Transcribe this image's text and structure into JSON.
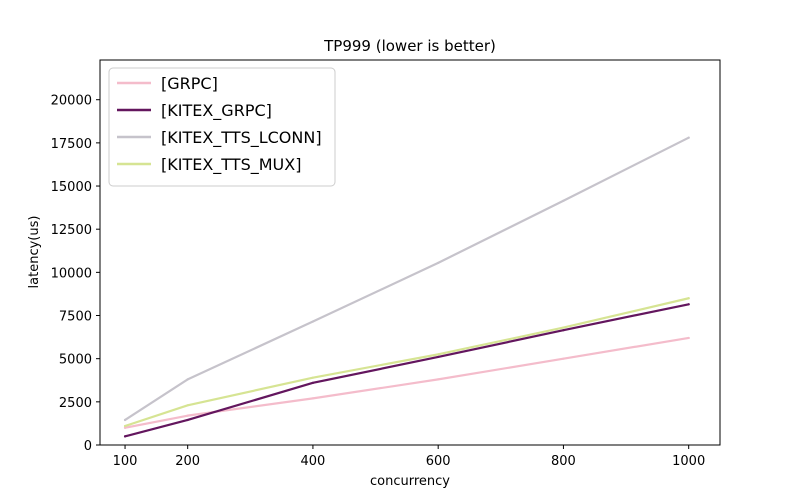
{
  "chart_data": {
    "type": "line",
    "title": "TP999 (lower is better)",
    "xlabel": "concurrency",
    "ylabel": "latency(us)",
    "xlim": [
      60,
      1050
    ],
    "ylim": [
      0,
      22300
    ],
    "xticks": [
      100,
      200,
      400,
      600,
      800,
      1000
    ],
    "yticks": [
      0,
      2500,
      5000,
      7500,
      10000,
      12500,
      15000,
      17500,
      20000
    ],
    "grid": false,
    "legend_position": "upper left",
    "x": [
      100,
      200,
      400,
      600,
      800,
      1000
    ],
    "series": [
      {
        "name": "[GRPC]",
        "color": "#f4bccb",
        "values": [
          1000,
          1700,
          2700,
          3800,
          5000,
          6200
        ]
      },
      {
        "name": "[KITEX_GRPC]",
        "color": "#63165e",
        "values": [
          500,
          1450,
          3600,
          5100,
          6650,
          8150
        ]
      },
      {
        "name": "[KITEX_TTS_LCONN]",
        "color": "#c6c3cb",
        "values": [
          1450,
          3800,
          7150,
          10550,
          14150,
          17800
        ]
      },
      {
        "name": "[KITEX_TTS_MUX]",
        "color": "#d6e493",
        "values": [
          1100,
          2300,
          3900,
          5250,
          6800,
          8500
        ]
      }
    ]
  }
}
